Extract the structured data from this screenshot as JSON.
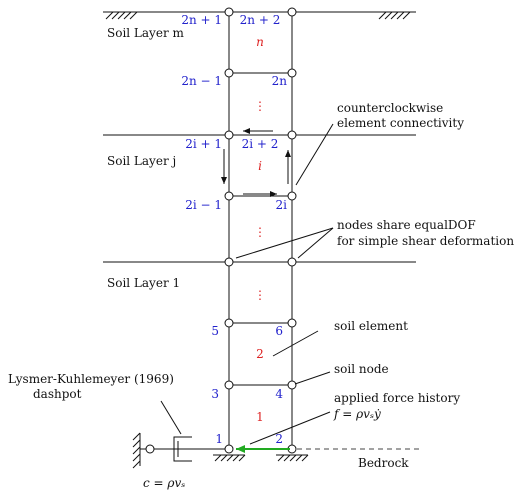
{
  "layers": {
    "top": "Soil Layer m",
    "middle": "Soil Layer j",
    "bottom": "Soil Layer 1"
  },
  "node_labels": {
    "top_left": "2n + 1",
    "top_right": "2n + 2",
    "upper_left": "2n − 1",
    "upper_right": "2n",
    "mid_left": "2i + 1",
    "mid_right": "2i + 2",
    "midlow_left": "2i − 1",
    "midlow_right": "2i",
    "n5": "5",
    "n6": "6",
    "n3": "3",
    "n4": "4",
    "n1": "1",
    "n2": "2"
  },
  "element_labels": {
    "top": "n",
    "dots_top": "⋮",
    "mid": "i",
    "dots_mid": "⋮",
    "dots_low": "⋮",
    "e2": "2",
    "e1": "1"
  },
  "annotations": {
    "connectivity_1": "counterclockwise",
    "connectivity_2": "element connectivity",
    "equaldof_1": "nodes share equalDOF",
    "equaldof_2": "for simple shear deformation",
    "soil_element": "soil element",
    "soil_node": "soil node",
    "force_1": "applied force history",
    "force_2": "f = ρvₛẏ",
    "dashpot_1": "Lysmer-Kuhlemeyer (1969)",
    "dashpot_2": "dashpot",
    "dashpot_coef": "c = ρvₛ",
    "bedrock": "Bedrock"
  },
  "colors": {
    "node_label": "#2222cc",
    "element_label": "#dd2222",
    "force_arrow": "#22aa22",
    "line": "#111111"
  }
}
